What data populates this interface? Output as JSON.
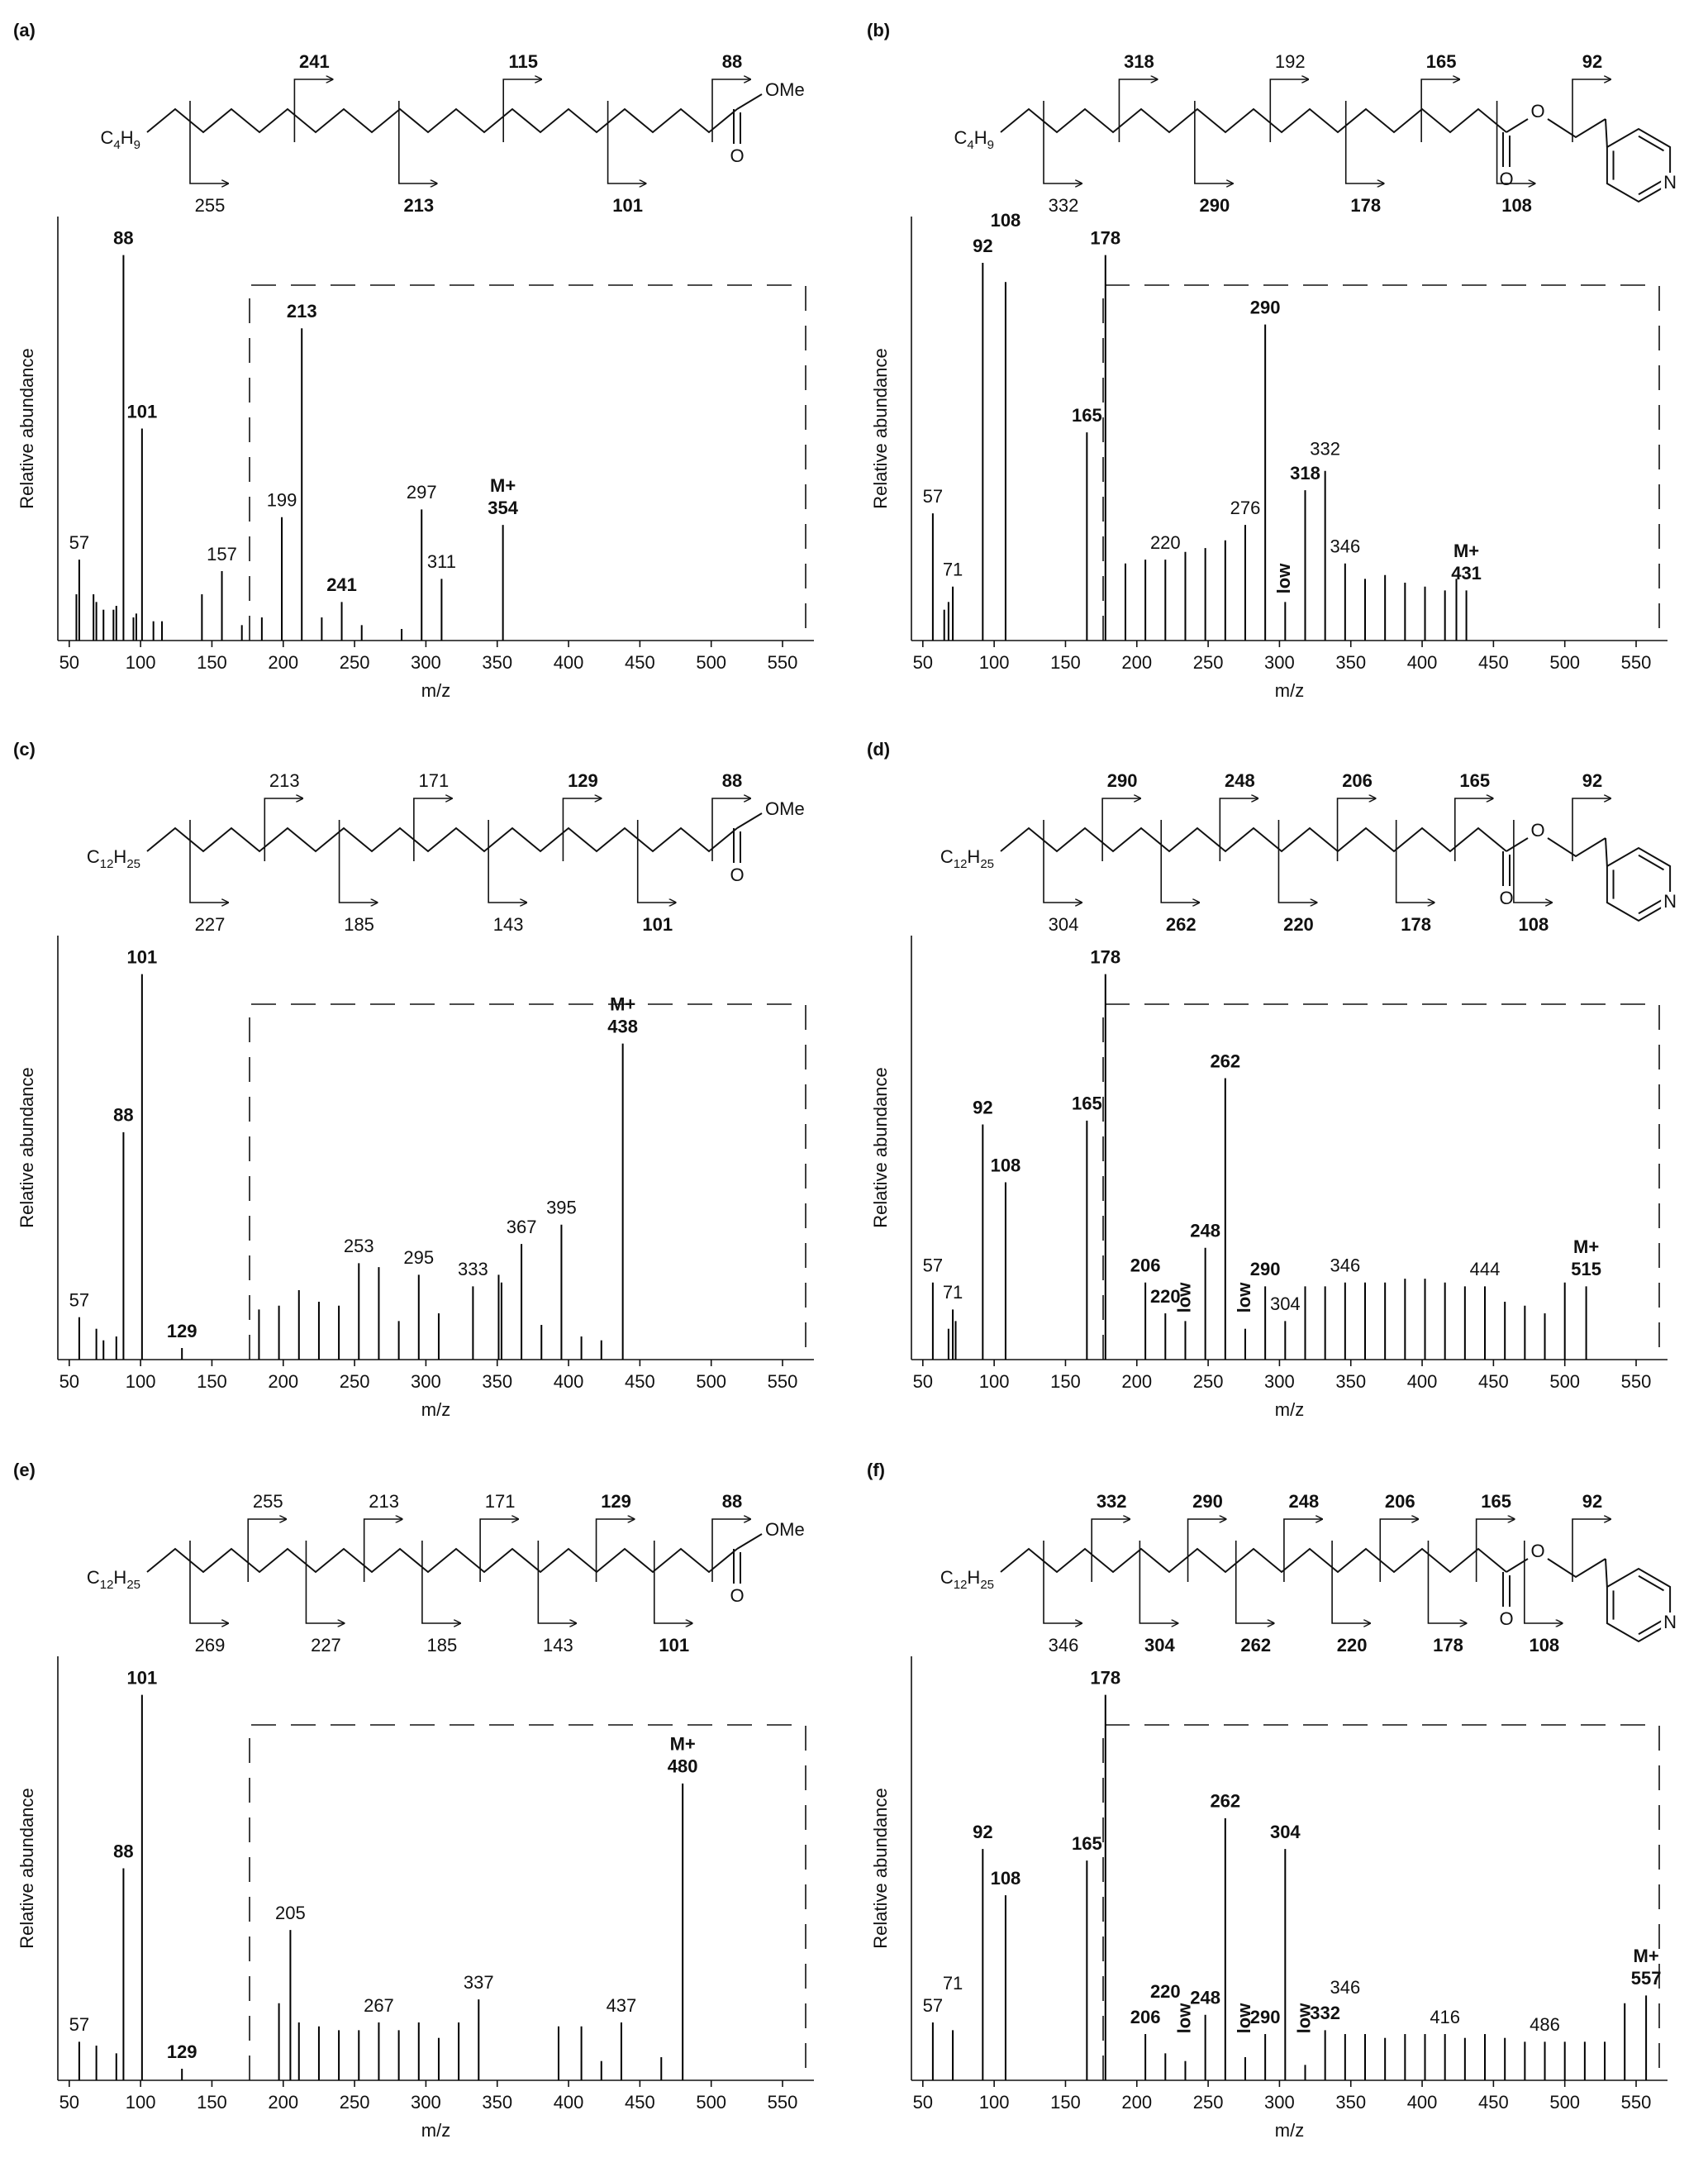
{
  "chart_data": [
    {
      "type": "bar",
      "panel_label": "(a)",
      "structure": {
        "substituent": "C4H9",
        "carbonyl": "O",
        "ester": "OMe",
        "fragments": [
          {
            "mz": 255,
            "bold": false,
            "side": "bottom"
          },
          {
            "mz": 241,
            "bold": true,
            "side": "top"
          },
          {
            "mz": 213,
            "bold": true,
            "side": "bottom"
          },
          {
            "mz": 115,
            "bold": true,
            "side": "top"
          },
          {
            "mz": 101,
            "bold": true,
            "side": "bottom"
          },
          {
            "mz": 88,
            "bold": true,
            "side": "top"
          }
        ]
      },
      "xlabel": "m/z",
      "ylabel": "Relative abundance",
      "x": [
        55,
        57,
        67,
        69,
        74,
        81,
        83,
        88,
        95,
        97,
        101,
        109,
        115,
        143,
        157,
        171,
        185,
        199,
        213,
        227,
        241,
        255,
        283,
        297,
        311,
        354
      ],
      "values": [
        12,
        21,
        12,
        10,
        8,
        8,
        9,
        100,
        6,
        7,
        55,
        5,
        5,
        12,
        18,
        4,
        6,
        32,
        81,
        6,
        10,
        4,
        3,
        34,
        16,
        30
      ],
      "color": "#000000",
      "xlim": [
        42,
        572
      ],
      "xticks": [
        50,
        100,
        150,
        200,
        250,
        300,
        350,
        400,
        450,
        500,
        550
      ],
      "ylim": [
        0,
        110
      ],
      "grid": false,
      "peak_labels": [
        {
          "mz": 57,
          "bold": false
        },
        {
          "mz": 88,
          "bold": true
        },
        {
          "mz": 101,
          "bold": true
        },
        {
          "mz": 157,
          "bold": false
        },
        {
          "mz": 199,
          "bold": false
        },
        {
          "mz": 213,
          "bold": true
        },
        {
          "mz": 241,
          "bold": true
        },
        {
          "mz": 297,
          "bold": false
        },
        {
          "mz": 311,
          "bold": false
        }
      ],
      "molecular_ion": {
        "text": "M+",
        "mz": 354
      }
    },
    {
      "type": "bar",
      "panel_label": "(b)",
      "structure": {
        "substituent": "C4H9",
        "carbonyl": "O",
        "ester_oxygen": "O",
        "ring_atom": "N",
        "fragments": [
          {
            "mz": 332,
            "bold": false,
            "side": "bottom"
          },
          {
            "mz": 318,
            "bold": true,
            "side": "top"
          },
          {
            "mz": 290,
            "bold": true,
            "side": "bottom"
          },
          {
            "mz": 192,
            "bold": false,
            "side": "top"
          },
          {
            "mz": 178,
            "bold": true,
            "side": "bottom"
          },
          {
            "mz": 165,
            "bold": true,
            "side": "top"
          },
          {
            "mz": 108,
            "bold": true,
            "side": "bottom"
          },
          {
            "mz": 92,
            "bold": true,
            "side": "top"
          }
        ]
      },
      "xlabel": "m/z",
      "ylabel": "Relative abundance",
      "x": [
        57,
        65,
        68,
        71,
        92,
        108,
        165,
        178,
        192,
        206,
        220,
        234,
        248,
        262,
        276,
        290,
        304,
        318,
        332,
        346,
        360,
        374,
        388,
        402,
        416,
        424,
        431
      ],
      "values": [
        33,
        8,
        10,
        14,
        98,
        93,
        54,
        100,
        20,
        21,
        21,
        23,
        24,
        26,
        30,
        82,
        10,
        39,
        44,
        20,
        16,
        17,
        15,
        14,
        13,
        16,
        13
      ],
      "color": "#000000",
      "xlim": [
        42,
        572
      ],
      "xticks": [
        50,
        100,
        150,
        200,
        250,
        300,
        350,
        400,
        450,
        500,
        550
      ],
      "ylim": [
        0,
        110
      ],
      "grid": false,
      "peak_labels": [
        {
          "mz": 57,
          "bold": false
        },
        {
          "mz": 71,
          "bold": false
        },
        {
          "mz": 92,
          "bold": true
        },
        {
          "mz": 108,
          "bold": true
        },
        {
          "mz": 165,
          "bold": true
        },
        {
          "mz": 178,
          "bold": true
        },
        {
          "mz": 220,
          "bold": false
        },
        {
          "mz": 276,
          "bold": false
        },
        {
          "mz": 290,
          "bold": true
        },
        {
          "mz": 318,
          "bold": true
        },
        {
          "mz": 332,
          "bold": false
        },
        {
          "mz": 346,
          "bold": false
        }
      ],
      "molecular_ion": {
        "text": "M+",
        "mz": 431
      },
      "low": {
        "text": "low",
        "mz": [
          304
        ]
      }
    },
    {
      "type": "bar",
      "panel_label": "(c)",
      "structure": {
        "substituent": "C12H25",
        "carbonyl": "O",
        "ester": "OMe",
        "fragments": [
          {
            "mz": 227,
            "bold": false,
            "side": "bottom"
          },
          {
            "mz": 213,
            "bold": false,
            "side": "top"
          },
          {
            "mz": 185,
            "bold": false,
            "side": "bottom"
          },
          {
            "mz": 171,
            "bold": false,
            "side": "top"
          },
          {
            "mz": 143,
            "bold": false,
            "side": "bottom"
          },
          {
            "mz": 129,
            "bold": true,
            "side": "top"
          },
          {
            "mz": 101,
            "bold": true,
            "side": "bottom"
          },
          {
            "mz": 88,
            "bold": true,
            "side": "top"
          }
        ]
      },
      "xlabel": "m/z",
      "ylabel": "Relative abundance",
      "x": [
        57,
        69,
        74,
        83,
        88,
        101,
        129,
        183,
        197,
        211,
        225,
        239,
        253,
        267,
        281,
        295,
        309,
        333,
        351,
        353,
        367,
        381,
        395,
        409,
        423,
        438
      ],
      "values": [
        11,
        8,
        5,
        6,
        59,
        100,
        3,
        13,
        14,
        18,
        15,
        14,
        25,
        24,
        10,
        22,
        12,
        19,
        22,
        20,
        30,
        9,
        35,
        6,
        5,
        82
      ],
      "color": "#000000",
      "xlim": [
        42,
        572
      ],
      "xticks": [
        50,
        100,
        150,
        200,
        250,
        300,
        350,
        400,
        450,
        500,
        550
      ],
      "ylim": [
        0,
        110
      ],
      "grid": false,
      "peak_labels": [
        {
          "mz": 57,
          "bold": false
        },
        {
          "mz": 88,
          "bold": true
        },
        {
          "mz": 101,
          "bold": true
        },
        {
          "mz": 129,
          "bold": true
        },
        {
          "mz": 253,
          "bold": false
        },
        {
          "mz": 295,
          "bold": false
        },
        {
          "mz": 333,
          "bold": false
        },
        {
          "mz": 367,
          "bold": false
        },
        {
          "mz": 395,
          "bold": false
        }
      ],
      "molecular_ion": {
        "text": "M+",
        "mz": 438
      }
    },
    {
      "type": "bar",
      "panel_label": "(d)",
      "structure": {
        "substituent": "C12H25",
        "carbonyl": "O",
        "ester_oxygen": "O",
        "ring_atom": "N",
        "fragments": [
          {
            "mz": 304,
            "bold": false,
            "side": "bottom"
          },
          {
            "mz": 290,
            "bold": true,
            "side": "top"
          },
          {
            "mz": 262,
            "bold": true,
            "side": "bottom"
          },
          {
            "mz": 248,
            "bold": true,
            "side": "top"
          },
          {
            "mz": 220,
            "bold": true,
            "side": "bottom"
          },
          {
            "mz": 206,
            "bold": true,
            "side": "top"
          },
          {
            "mz": 178,
            "bold": true,
            "side": "bottom"
          },
          {
            "mz": 165,
            "bold": true,
            "side": "top"
          },
          {
            "mz": 108,
            "bold": true,
            "side": "bottom"
          },
          {
            "mz": 92,
            "bold": true,
            "side": "top"
          }
        ]
      },
      "xlabel": "m/z",
      "ylabel": "Relative abundance",
      "x": [
        57,
        68,
        71,
        73,
        92,
        108,
        165,
        178,
        206,
        220,
        234,
        248,
        262,
        276,
        290,
        304,
        318,
        332,
        346,
        360,
        374,
        388,
        402,
        416,
        430,
        444,
        458,
        472,
        486,
        500,
        515
      ],
      "values": [
        20,
        8,
        13,
        10,
        61,
        46,
        62,
        100,
        20,
        12,
        10,
        29,
        73,
        8,
        19,
        10,
        19,
        19,
        20,
        20,
        20,
        21,
        21,
        20,
        19,
        19,
        15,
        14,
        12,
        20,
        19
      ],
      "color": "#000000",
      "xlim": [
        42,
        572
      ],
      "xticks": [
        50,
        100,
        150,
        200,
        250,
        300,
        350,
        400,
        450,
        500,
        550
      ],
      "ylim": [
        0,
        110
      ],
      "grid": false,
      "peak_labels": [
        {
          "mz": 57,
          "bold": false
        },
        {
          "mz": 71,
          "bold": false
        },
        {
          "mz": 92,
          "bold": true
        },
        {
          "mz": 108,
          "bold": true
        },
        {
          "mz": 165,
          "bold": true
        },
        {
          "mz": 178,
          "bold": true
        },
        {
          "mz": 206,
          "bold": true
        },
        {
          "mz": 220,
          "bold": true
        },
        {
          "mz": 248,
          "bold": true
        },
        {
          "mz": 262,
          "bold": true
        },
        {
          "mz": 290,
          "bold": true
        },
        {
          "mz": 304,
          "bold": false
        },
        {
          "mz": 346,
          "bold": false
        },
        {
          "mz": 444,
          "bold": false
        }
      ],
      "molecular_ion": {
        "text": "M+",
        "mz": 515
      },
      "low": {
        "text": "low",
        "mz": [
          234,
          276
        ]
      }
    },
    {
      "type": "bar",
      "panel_label": "(e)",
      "structure": {
        "substituent": "C12H25",
        "carbonyl": "O",
        "ester": "OMe",
        "fragments": [
          {
            "mz": 269,
            "bold": false,
            "side": "bottom"
          },
          {
            "mz": 255,
            "bold": false,
            "side": "top"
          },
          {
            "mz": 227,
            "bold": false,
            "side": "bottom"
          },
          {
            "mz": 213,
            "bold": false,
            "side": "top"
          },
          {
            "mz": 185,
            "bold": false,
            "side": "bottom"
          },
          {
            "mz": 171,
            "bold": false,
            "side": "top"
          },
          {
            "mz": 143,
            "bold": false,
            "side": "bottom"
          },
          {
            "mz": 129,
            "bold": true,
            "side": "top"
          },
          {
            "mz": 101,
            "bold": true,
            "side": "bottom"
          },
          {
            "mz": 88,
            "bold": true,
            "side": "top"
          }
        ]
      },
      "xlabel": "m/z",
      "ylabel": "Relative abundance",
      "x": [
        57,
        69,
        83,
        88,
        101,
        129,
        197,
        205,
        211,
        225,
        239,
        253,
        267,
        281,
        295,
        309,
        323,
        337,
        393,
        409,
        423,
        437,
        465,
        480
      ],
      "values": [
        10,
        9,
        7,
        55,
        100,
        3,
        20,
        39,
        15,
        14,
        13,
        13,
        15,
        13,
        15,
        11,
        15,
        21,
        14,
        14,
        5,
        15,
        6,
        77
      ],
      "color": "#000000",
      "xlim": [
        42,
        572
      ],
      "xticks": [
        50,
        100,
        150,
        200,
        250,
        300,
        350,
        400,
        450,
        500,
        550
      ],
      "ylim": [
        0,
        110
      ],
      "grid": false,
      "peak_labels": [
        {
          "mz": 57,
          "bold": false
        },
        {
          "mz": 88,
          "bold": true
        },
        {
          "mz": 101,
          "bold": true
        },
        {
          "mz": 129,
          "bold": true
        },
        {
          "mz": 205,
          "bold": false
        },
        {
          "mz": 267,
          "bold": false
        },
        {
          "mz": 337,
          "bold": false
        },
        {
          "mz": 437,
          "bold": false
        }
      ],
      "molecular_ion": {
        "text": "M+",
        "mz": 480
      }
    },
    {
      "type": "bar",
      "panel_label": "(f)",
      "structure": {
        "substituent": "C12H25",
        "carbonyl": "O",
        "ester_oxygen": "O",
        "ring_atom": "N",
        "fragments": [
          {
            "mz": 346,
            "bold": false,
            "side": "bottom"
          },
          {
            "mz": 332,
            "bold": true,
            "side": "top"
          },
          {
            "mz": 304,
            "bold": true,
            "side": "bottom"
          },
          {
            "mz": 290,
            "bold": true,
            "side": "top"
          },
          {
            "mz": 262,
            "bold": true,
            "side": "bottom"
          },
          {
            "mz": 248,
            "bold": true,
            "side": "top"
          },
          {
            "mz": 220,
            "bold": true,
            "side": "bottom"
          },
          {
            "mz": 206,
            "bold": true,
            "side": "top"
          },
          {
            "mz": 178,
            "bold": true,
            "side": "bottom"
          },
          {
            "mz": 165,
            "bold": true,
            "side": "top"
          },
          {
            "mz": 108,
            "bold": true,
            "side": "bottom"
          },
          {
            "mz": 92,
            "bold": true,
            "side": "top"
          }
        ]
      },
      "xlabel": "m/z",
      "ylabel": "Relative abundance",
      "x": [
        57,
        71,
        92,
        108,
        165,
        178,
        206,
        220,
        234,
        248,
        262,
        276,
        290,
        304,
        318,
        332,
        346,
        360,
        374,
        388,
        402,
        416,
        430,
        444,
        458,
        472,
        486,
        500,
        514,
        528,
        542,
        557
      ],
      "values": [
        15,
        13,
        60,
        48,
        57,
        100,
        12,
        7,
        5,
        17,
        68,
        6,
        12,
        60,
        4,
        13,
        12,
        12,
        11,
        12,
        12,
        12,
        11,
        12,
        11,
        10,
        10,
        10,
        10,
        10,
        20,
        22
      ],
      "color": "#000000",
      "xlim": [
        42,
        572
      ],
      "xticks": [
        50,
        100,
        150,
        200,
        250,
        300,
        350,
        400,
        450,
        500,
        550
      ],
      "ylim": [
        0,
        110
      ],
      "grid": false,
      "peak_labels": [
        {
          "mz": 57,
          "bold": false
        },
        {
          "mz": 71,
          "bold": false
        },
        {
          "mz": 92,
          "bold": true
        },
        {
          "mz": 108,
          "bold": true
        },
        {
          "mz": 165,
          "bold": true
        },
        {
          "mz": 178,
          "bold": true
        },
        {
          "mz": 206,
          "bold": true
        },
        {
          "mz": 220,
          "bold": true
        },
        {
          "mz": 248,
          "bold": true
        },
        {
          "mz": 262,
          "bold": true
        },
        {
          "mz": 290,
          "bold": true
        },
        {
          "mz": 304,
          "bold": true
        },
        {
          "mz": 332,
          "bold": true
        },
        {
          "mz": 346,
          "bold": false
        },
        {
          "mz": 416,
          "bold": false
        },
        {
          "mz": 486,
          "bold": false
        }
      ],
      "molecular_ion": {
        "text": "M+",
        "mz": 557
      },
      "low": {
        "text": "low",
        "mz": [
          234,
          276,
          318
        ]
      }
    }
  ]
}
